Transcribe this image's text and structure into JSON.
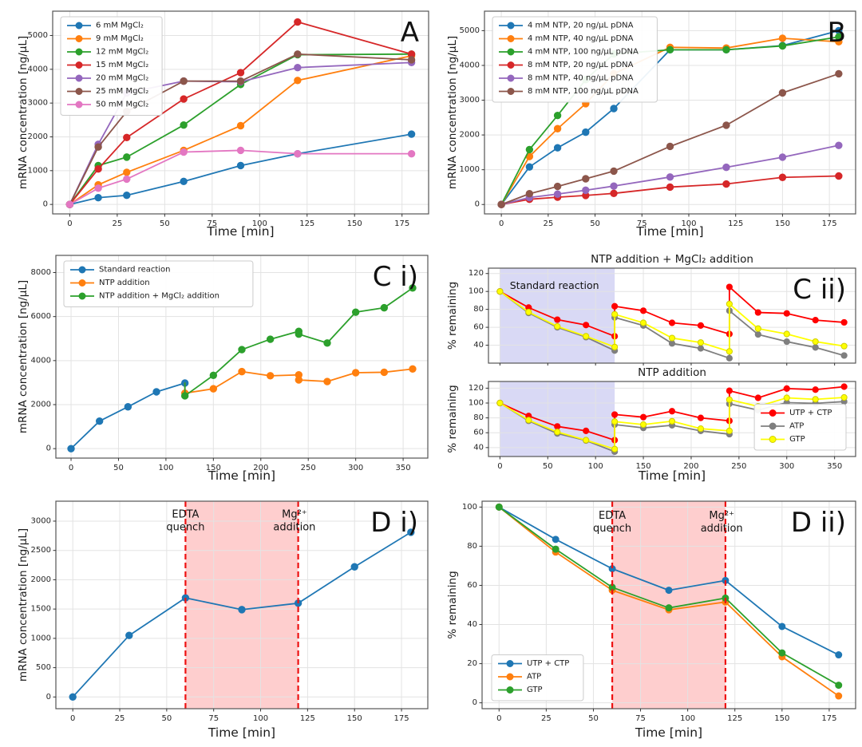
{
  "figure": {
    "background": "#ffffff"
  },
  "chart_data": [
    {
      "id": "A",
      "type": "line",
      "panel_label": "A",
      "title": "",
      "xlabel": "Time [min]",
      "ylabel": "mRNA concentration [ng/µL]",
      "xlim": [
        -9,
        189
      ],
      "ylim": [
        -280,
        5720
      ],
      "xticks": [
        0,
        25,
        50,
        75,
        100,
        125,
        150,
        175
      ],
      "yticks": [
        0,
        1000,
        2000,
        3000,
        4000,
        5000
      ],
      "show_xtick_labels": true,
      "grid": true,
      "marker_r": 4.2,
      "legend": {
        "show": true,
        "position": "upper-left"
      },
      "regions": [],
      "vlines": [],
      "annotations": [],
      "series": [
        {
          "name": "6 mM MgCl₂",
          "color": "#1f77b4",
          "x": [
            0,
            15,
            30,
            60,
            90,
            120,
            180
          ],
          "y": [
            0,
            200,
            270,
            680,
            1150,
            1500,
            2080
          ]
        },
        {
          "name": "9 mM MgCl₂",
          "color": "#ff7f0e",
          "x": [
            0,
            15,
            30,
            60,
            90,
            120,
            180
          ],
          "y": [
            0,
            580,
            950,
            1600,
            2330,
            3670,
            4400
          ]
        },
        {
          "name": "12 mM MgCl₂",
          "color": "#2ca02c",
          "x": [
            0,
            15,
            30,
            60,
            90,
            120,
            180
          ],
          "y": [
            0,
            1150,
            1400,
            2350,
            3550,
            4430,
            4450
          ]
        },
        {
          "name": "15 mM MgCl₂",
          "color": "#d62728",
          "x": [
            0,
            15,
            30,
            60,
            90,
            120,
            180
          ],
          "y": [
            0,
            1050,
            1980,
            3120,
            3900,
            5400,
            4450
          ]
        },
        {
          "name": "20 mM MgCl₂",
          "color": "#9467bd",
          "x": [
            0,
            15,
            30,
            60,
            90,
            120,
            180
          ],
          "y": [
            0,
            1780,
            3300,
            3650,
            3630,
            4050,
            4200
          ]
        },
        {
          "name": "25 mM MgCl₂",
          "color": "#8c564b",
          "x": [
            0,
            15,
            30,
            60,
            90,
            120,
            180
          ],
          "y": [
            0,
            1700,
            2750,
            3650,
            3650,
            4450,
            4280
          ]
        },
        {
          "name": "50 mM MgCl₂",
          "color": "#e377c2",
          "x": [
            0,
            15,
            30,
            60,
            90,
            120,
            180
          ],
          "y": [
            0,
            480,
            750,
            1550,
            1600,
            1500,
            1500
          ]
        }
      ]
    },
    {
      "id": "B",
      "type": "line",
      "panel_label": "B",
      "title": "",
      "xlabel": "Time [min]",
      "ylabel": "mRNA concentration [ng/µL]",
      "xlim": [
        -9,
        189
      ],
      "ylim": [
        -270,
        5560
      ],
      "xticks": [
        0,
        25,
        50,
        75,
        100,
        125,
        150,
        175
      ],
      "yticks": [
        0,
        1000,
        2000,
        3000,
        4000,
        5000
      ],
      "show_xtick_labels": true,
      "grid": true,
      "marker_r": 4.2,
      "legend": {
        "show": true,
        "position": "upper-left"
      },
      "regions": [],
      "vlines": [],
      "annotations": [],
      "series": [
        {
          "name": "4 mM NTP, 20 ng/µL pDNA",
          "color": "#1f77b4",
          "x": [
            0,
            15,
            30,
            45,
            60,
            90,
            120,
            150,
            180
          ],
          "y": [
            0,
            1080,
            1630,
            2080,
            2760,
            4450,
            4450,
            4570,
            5000
          ]
        },
        {
          "name": "4 mM NTP, 40 ng/µL pDNA",
          "color": "#ff7f0e",
          "x": [
            0,
            15,
            30,
            45,
            60,
            90,
            120,
            150,
            180
          ],
          "y": [
            0,
            1380,
            2180,
            2900,
            3760,
            4520,
            4500,
            4780,
            4680
          ]
        },
        {
          "name": "4 mM NTP, 100 ng/µL pDNA",
          "color": "#2ca02c",
          "x": [
            0,
            15,
            30,
            45,
            60,
            90,
            120,
            150,
            180
          ],
          "y": [
            0,
            1580,
            2560,
            3590,
            4330,
            4450,
            4450,
            4560,
            4820
          ]
        },
        {
          "name": "8 mM NTP, 20 ng/µL pDNA",
          "color": "#d62728",
          "x": [
            0,
            15,
            30,
            45,
            60,
            90,
            120,
            150,
            180
          ],
          "y": [
            0,
            150,
            210,
            260,
            320,
            500,
            590,
            780,
            820
          ]
        },
        {
          "name": "8 mM NTP, 40 ng/µL pDNA",
          "color": "#9467bd",
          "x": [
            0,
            15,
            30,
            45,
            60,
            90,
            120,
            150,
            180
          ],
          "y": [
            0,
            200,
            300,
            410,
            530,
            790,
            1070,
            1360,
            1700
          ]
        },
        {
          "name": "8 mM NTP, 100 ng/µL pDNA",
          "color": "#8c564b",
          "x": [
            0,
            15,
            30,
            45,
            60,
            90,
            120,
            150,
            180
          ],
          "y": [
            0,
            310,
            520,
            740,
            960,
            1670,
            2280,
            3210,
            3760
          ]
        }
      ]
    },
    {
      "id": "Ci",
      "type": "line",
      "panel_label": "C i)",
      "title": "",
      "xlabel": "Time [min]",
      "ylabel": "mRNA concentration [ng/µL]",
      "xlim": [
        -16,
        376
      ],
      "ylim": [
        -430,
        8780
      ],
      "xticks": [
        0,
        50,
        100,
        150,
        200,
        250,
        300,
        350
      ],
      "yticks": [
        0,
        2000,
        4000,
        6000,
        8000
      ],
      "show_xtick_labels": true,
      "grid": true,
      "marker_r": 4.2,
      "legend": {
        "show": true,
        "position": "upper-left"
      },
      "regions": [],
      "vlines": [],
      "annotations": [],
      "series": [
        {
          "name": "Standard reaction",
          "color": "#1f77b4",
          "x": [
            0,
            30,
            60,
            90,
            120
          ],
          "y": [
            0,
            1250,
            1900,
            2580,
            2980
          ]
        },
        {
          "name": "NTP addition",
          "color": "#ff7f0e",
          "no_marker_first": true,
          "x": [
            120,
            120,
            150,
            180,
            210,
            240,
            240,
            270,
            300,
            330,
            360
          ],
          "y": [
            2980,
            2520,
            2720,
            3500,
            3310,
            3350,
            3120,
            3050,
            3450,
            3470,
            3620
          ]
        },
        {
          "name": "NTP addition + MgCl₂ addition",
          "color": "#2ca02c",
          "no_marker_first": true,
          "x": [
            120,
            120,
            150,
            180,
            210,
            240,
            240,
            270,
            300,
            330,
            360
          ],
          "y": [
            2980,
            2400,
            3330,
            4500,
            4970,
            5330,
            5200,
            4800,
            6200,
            6400,
            7300
          ]
        }
      ]
    },
    {
      "id": "Cii_top",
      "type": "line",
      "panel_label": "C ii)",
      "title": "NTP addition + MgCl₂ addition",
      "xlabel": "",
      "ylabel": "% remaining",
      "xlim": [
        -12,
        372
      ],
      "ylim": [
        20,
        126
      ],
      "xticks": [
        0,
        50,
        100,
        150,
        200,
        250,
        300,
        350
      ],
      "yticks": [
        40,
        60,
        80,
        100,
        120
      ],
      "show_xtick_labels": false,
      "grid": true,
      "marker_r": 3.6,
      "legend": {
        "show": false,
        "position": "lower-right"
      },
      "regions": [
        {
          "x0": 0,
          "x1": 120,
          "color": "rgba(105,105,215,0.25)"
        }
      ],
      "vlines": [],
      "annotations": [
        {
          "x": 57,
          "y": 103,
          "lines": [
            "Standard reaction"
          ],
          "size": 12.5
        }
      ],
      "series": [
        {
          "name": "UTP + CTP",
          "color": "#ff0000",
          "x": [
            0,
            30,
            60,
            90,
            120,
            120,
            150,
            180,
            210,
            240,
            240,
            270,
            300,
            330,
            360
          ],
          "y": [
            100,
            82,
            68.5,
            62.5,
            50,
            83.5,
            78.5,
            65,
            62,
            52.5,
            105,
            76.5,
            75.5,
            68,
            65.5
          ]
        },
        {
          "name": "ATP",
          "color": "#7f7f7f",
          "x": [
            0,
            30,
            60,
            90,
            120,
            120,
            150,
            180,
            210,
            240,
            240,
            270,
            300,
            330,
            360
          ],
          "y": [
            100,
            76,
            60,
            49,
            34,
            71,
            62,
            42,
            36.5,
            25.5,
            78.5,
            52,
            44,
            37.5,
            28.5
          ]
        },
        {
          "name": "GTP",
          "color": "#ffff00",
          "marker_edge": "#cfcf00",
          "x": [
            0,
            30,
            60,
            90,
            120,
            120,
            150,
            180,
            210,
            240,
            240,
            270,
            300,
            330,
            360
          ],
          "y": [
            100,
            77,
            61,
            50,
            38,
            74.5,
            65,
            48,
            43,
            33,
            86,
            58.5,
            52.5,
            44,
            39
          ]
        }
      ]
    },
    {
      "id": "Cii_bottom",
      "type": "line",
      "panel_label": "",
      "title": "NTP addition",
      "xlabel": "Time [min]",
      "ylabel": "% remaining",
      "xlim": [
        -12,
        372
      ],
      "ylim": [
        28,
        129
      ],
      "xticks": [
        0,
        50,
        100,
        150,
        200,
        250,
        300,
        350
      ],
      "yticks": [
        40,
        60,
        80,
        100,
        120
      ],
      "show_xtick_labels": true,
      "grid": true,
      "marker_r": 3.6,
      "legend": {
        "show": true,
        "position": "lower-right"
      },
      "regions": [
        {
          "x0": 0,
          "x1": 120,
          "color": "rgba(105,105,215,0.25)"
        }
      ],
      "vlines": [],
      "annotations": [],
      "series": [
        {
          "name": "UTP + CTP",
          "color": "#ff0000",
          "x": [
            0,
            30,
            60,
            90,
            120,
            120,
            150,
            180,
            210,
            240,
            240,
            270,
            300,
            330,
            360
          ],
          "y": [
            100,
            82.5,
            68.5,
            62.5,
            50,
            84.5,
            81,
            89,
            80,
            76,
            116.5,
            107,
            119.5,
            118,
            122
          ]
        },
        {
          "name": "ATP",
          "color": "#7f7f7f",
          "x": [
            0,
            30,
            60,
            90,
            120,
            120,
            150,
            180,
            210,
            240,
            240,
            270,
            300,
            330,
            360
          ],
          "y": [
            100,
            76,
            59,
            49.5,
            34.5,
            71,
            66.5,
            70,
            62.5,
            58,
            99,
            90.5,
            100.5,
            99.5,
            102
          ]
        },
        {
          "name": "GTP",
          "color": "#ffff00",
          "marker_edge": "#cfcf00",
          "x": [
            0,
            30,
            60,
            90,
            120,
            120,
            150,
            180,
            210,
            240,
            240,
            270,
            300,
            330,
            360
          ],
          "y": [
            100,
            77,
            61,
            50,
            38,
            75,
            71,
            75.5,
            65.5,
            62.5,
            104.5,
            95.5,
            107,
            105,
            107.5
          ]
        }
      ]
    },
    {
      "id": "Di",
      "type": "line",
      "panel_label": "D i)",
      "title": "",
      "xlabel": "Time [min]",
      "ylabel": "mRNA concentration [ng/µL]",
      "xlim": [
        -9,
        189
      ],
      "ylim": [
        -200,
        3340
      ],
      "xticks": [
        0,
        25,
        50,
        75,
        100,
        125,
        150,
        175
      ],
      "yticks": [
        0,
        500,
        1000,
        1500,
        2000,
        2500,
        3000
      ],
      "show_xtick_labels": true,
      "grid": true,
      "marker_r": 4.2,
      "legend": {
        "show": false,
        "position": "lower-left"
      },
      "regions": [
        {
          "x0": 60,
          "x1": 120,
          "color": "rgba(250,80,80,0.28)"
        }
      ],
      "vlines": [
        {
          "x": 60,
          "color": "#ee1111",
          "width": 2.2,
          "dash": "7,4"
        },
        {
          "x": 120,
          "color": "#ee1111",
          "width": 2.2,
          "dash": "7,4"
        }
      ],
      "annotations": [
        {
          "x": 60,
          "y": 3060,
          "lines": [
            "EDTA",
            "quench"
          ],
          "size": 13
        },
        {
          "x": 118,
          "y": 3060,
          "lines": [
            "Mg²⁺",
            "addition"
          ],
          "size": 13
        }
      ],
      "series": [
        {
          "name": "mRNA",
          "color": "#1f77b4",
          "x": [
            0,
            30,
            60,
            90,
            120,
            150,
            180
          ],
          "y": [
            0,
            1050,
            1690,
            1490,
            1600,
            2220,
            2810
          ]
        }
      ]
    },
    {
      "id": "Dii",
      "type": "line",
      "panel_label": "D ii)",
      "title": "",
      "xlabel": "Time [min]",
      "ylabel": "% remaining",
      "xlim": [
        -9,
        189
      ],
      "ylim": [
        -3,
        103
      ],
      "xticks": [
        0,
        25,
        50,
        75,
        100,
        125,
        150,
        175
      ],
      "yticks": [
        0,
        20,
        40,
        60,
        80,
        100
      ],
      "show_xtick_labels": true,
      "grid": true,
      "marker_r": 4.0,
      "legend": {
        "show": true,
        "position": "lower-left"
      },
      "regions": [
        {
          "x0": 60,
          "x1": 120,
          "color": "rgba(250,80,80,0.28)"
        }
      ],
      "vlines": [
        {
          "x": 60,
          "color": "#ee1111",
          "width": 2.2,
          "dash": "7,4"
        },
        {
          "x": 120,
          "color": "#ee1111",
          "width": 2.2,
          "dash": "7,4"
        }
      ],
      "annotations": [
        {
          "x": 60,
          "y": 94,
          "lines": [
            "EDTA",
            "quench"
          ],
          "size": 13
        },
        {
          "x": 118,
          "y": 94,
          "lines": [
            "Mg²⁺",
            "addition"
          ],
          "size": 13
        }
      ],
      "series": [
        {
          "name": "UTP + CTP",
          "color": "#1f77b4",
          "x": [
            0,
            30,
            60,
            90,
            120,
            150,
            180
          ],
          "y": [
            100,
            83.5,
            68.5,
            57.5,
            62.5,
            39,
            24.5
          ]
        },
        {
          "name": "ATP",
          "color": "#ff7f0e",
          "x": [
            0,
            30,
            60,
            90,
            120,
            150,
            180
          ],
          "y": [
            100,
            77,
            57.5,
            47.5,
            51.5,
            23.5,
            3.5
          ]
        },
        {
          "name": "GTP",
          "color": "#2ca02c",
          "x": [
            0,
            30,
            60,
            90,
            120,
            150,
            180
          ],
          "y": [
            100,
            78.5,
            59,
            48.5,
            53.5,
            25.5,
            9
          ]
        }
      ]
    }
  ]
}
